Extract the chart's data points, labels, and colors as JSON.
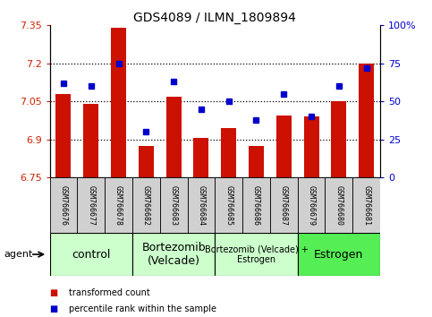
{
  "title": "GDS4089 / ILMN_1809894",
  "samples": [
    "GSM766676",
    "GSM766677",
    "GSM766678",
    "GSM766682",
    "GSM766683",
    "GSM766684",
    "GSM766685",
    "GSM766686",
    "GSM766687",
    "GSM766679",
    "GSM766680",
    "GSM766681"
  ],
  "bar_values": [
    7.08,
    7.04,
    7.34,
    6.875,
    7.07,
    6.905,
    6.945,
    6.875,
    6.995,
    6.99,
    7.05,
    7.2
  ],
  "dot_values": [
    62,
    60,
    75,
    30,
    63,
    45,
    50,
    38,
    55,
    40,
    60,
    72
  ],
  "y_min": 6.75,
  "y_max": 7.35,
  "y_ticks": [
    6.75,
    6.9,
    7.05,
    7.2,
    7.35
  ],
  "y_tick_labels": [
    "6.75",
    "6.9",
    "7.05",
    "7.2",
    "7.35"
  ],
  "y2_ticks": [
    0,
    25,
    50,
    75,
    100
  ],
  "y2_tick_labels": [
    "0",
    "25",
    "50",
    "75",
    "100%"
  ],
  "bar_color": "#cc1100",
  "dot_color": "#0000cc",
  "bar_width": 0.55,
  "group_labels": [
    "control",
    "Bortezomib\n(Velcade)",
    "Bortezomib (Velcade) +\nEstrogen",
    "Estrogen"
  ],
  "group_starts": [
    0,
    3,
    6,
    9
  ],
  "group_ends": [
    3,
    6,
    9,
    12
  ],
  "group_colors": [
    "#ccffcc",
    "#ccffcc",
    "#ccffcc",
    "#55ee55"
  ],
  "group_fontsizes": [
    9,
    9,
    7,
    9
  ],
  "agent_label": "agent",
  "legend_bar_label": "transformed count",
  "legend_dot_label": "percentile rank within the sample",
  "title_fontsize": 10,
  "tick_fontsize": 8,
  "sample_fontsize": 6,
  "axis_color_left": "#cc2200",
  "axis_color_right": "#0000cc",
  "sample_bg": "#d0d0d0"
}
